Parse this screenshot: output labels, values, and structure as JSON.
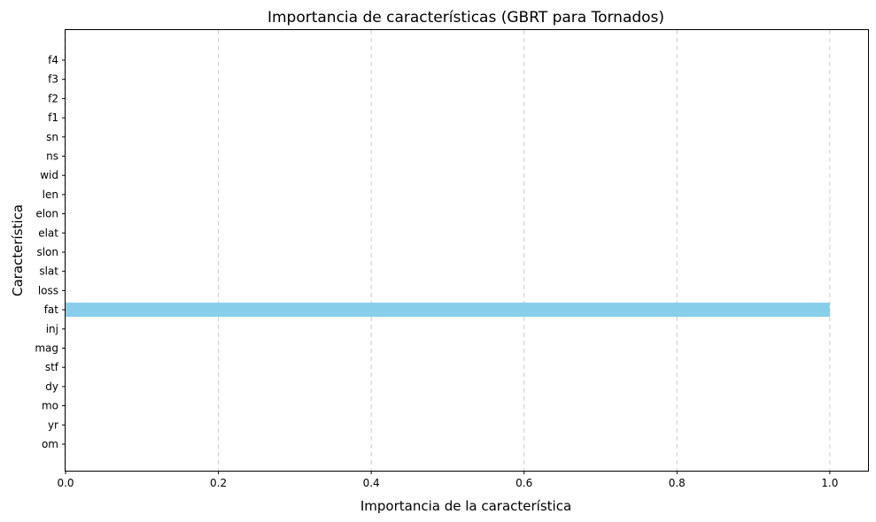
{
  "chart_data": {
    "type": "bar",
    "orientation": "horizontal",
    "title": "Importancia de características (GBRT para Tornados)",
    "xlabel": "Importancia de la característica",
    "ylabel": "Característica",
    "categories": [
      "om",
      "yr",
      "mo",
      "dy",
      "stf",
      "mag",
      "inj",
      "fat",
      "loss",
      "slat",
      "slon",
      "elat",
      "elon",
      "len",
      "wid",
      "ns",
      "sn",
      "f1",
      "f2",
      "f3",
      "f4"
    ],
    "values": [
      0,
      0,
      0,
      0,
      0,
      0,
      0,
      1.0,
      0,
      0,
      0,
      0,
      0,
      0,
      0,
      0,
      0,
      0,
      0,
      0,
      0
    ],
    "xlim": [
      0,
      1.05
    ],
    "xticks": [
      0.0,
      0.2,
      0.4,
      0.6,
      0.8,
      1.0
    ],
    "xtick_labels": [
      "0.0",
      "0.2",
      "0.4",
      "0.6",
      "0.8",
      "1.0"
    ],
    "grid": "x-dashed",
    "bar_color": "#87ceeb",
    "grid_color": "#cccccc"
  }
}
